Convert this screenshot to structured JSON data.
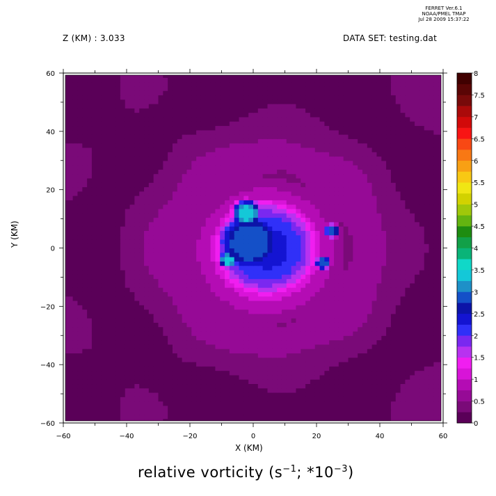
{
  "stamp": {
    "line1": "FERRET  Ver.6.1",
    "line2": "NOAA/PMEL TMAP",
    "line3": "Jul 28 2009 15:37:22"
  },
  "header": {
    "z_label": "Z (KM) : 3.033",
    "dataset_label": "DATA SET: testing.dat"
  },
  "chart_data": {
    "type": "heatmap",
    "title": "relative vorticity (s^-1; *10^-3)",
    "title_parts": {
      "main": "relative vorticity (s",
      "exp1": "−1",
      "mid": "; *10",
      "exp2": "−3",
      "end": ")"
    },
    "xlabel": "X (KM)",
    "ylabel": "Y (KM)",
    "xlim": [
      -60,
      60
    ],
    "ylim": [
      -60,
      60
    ],
    "x_ticks": [
      -60,
      -40,
      -20,
      0,
      20,
      40,
      60
    ],
    "y_ticks": [
      -60,
      -40,
      -20,
      0,
      20,
      40,
      60
    ],
    "colorbar": {
      "levels": [
        0,
        0.5,
        1,
        1.5,
        2,
        2.5,
        3,
        3.5,
        4,
        4.5,
        5,
        5.5,
        6,
        6.5,
        7,
        7.5,
        8
      ],
      "labels": [
        "0",
        "0.5",
        "1",
        "1.5",
        "2",
        "2.5",
        "3",
        "3.5",
        "4",
        "4.5",
        "5",
        "5.5",
        "6",
        "6.5",
        "7",
        "7.5",
        "8"
      ],
      "colors": [
        "#5a0058",
        "#7a0a78",
        "#960a96",
        "#b40cb4",
        "#d814d8",
        "#f01ef0",
        "#b832f0",
        "#7a28f0",
        "#3030f8",
        "#1414d2",
        "#0c14a8",
        "#1450c8",
        "#1e90c8",
        "#14c8d8",
        "#10d8c8",
        "#0ab478",
        "#12a048",
        "#1e8c10",
        "#64b410",
        "#a0c80a",
        "#d2d200",
        "#f0e614",
        "#f8c814",
        "#f8a014",
        "#f87814",
        "#f84814",
        "#f81414",
        "#d20a0a",
        "#aa0a0a",
        "#780a0a",
        "#5a0505",
        "#400000"
      ]
    },
    "field": {
      "background_level": 0.25,
      "vortex_center": [
        5,
        0
      ],
      "features": [
        {
          "x": 4,
          "y": -1,
          "radius": 26,
          "value": 1.2
        },
        {
          "x": 4,
          "y": 0,
          "radius": 18,
          "value": 2.3
        },
        {
          "x": -1,
          "y": 2,
          "radius": 11,
          "value": 3.0
        },
        {
          "x": -2,
          "y": 12,
          "radius": 5,
          "value": 3.4
        },
        {
          "x": -8,
          "y": -4,
          "radius": 3,
          "value": 3.5
        },
        {
          "x": 25,
          "y": 6,
          "radius": 2.5,
          "value": 3.0
        },
        {
          "x": 22,
          "y": -5,
          "radius": 2.5,
          "value": 3.0
        }
      ]
    }
  }
}
